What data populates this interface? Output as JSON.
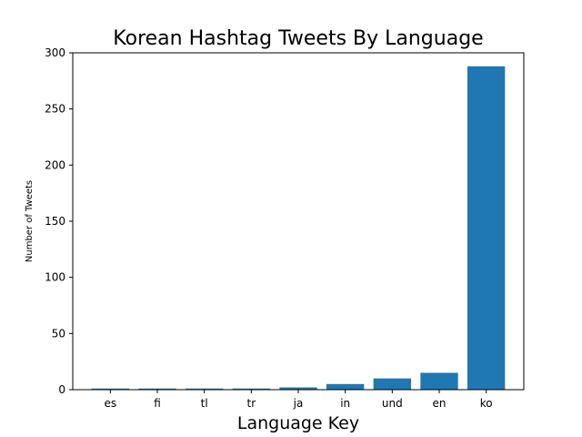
{
  "chart_data": {
    "type": "bar",
    "title": "Korean Hashtag Tweets By Language",
    "xlabel": "Language Key",
    "ylabel": "Number of Tweets",
    "categories": [
      "es",
      "fi",
      "tl",
      "tr",
      "ja",
      "in",
      "und",
      "en",
      "ko"
    ],
    "values": [
      1,
      1,
      1,
      1,
      2,
      5,
      10,
      15,
      288
    ],
    "ylim": [
      0,
      300
    ],
    "yticks": [
      0,
      50,
      100,
      150,
      200,
      250,
      300
    ],
    "grid": false,
    "legend": "none",
    "bar_color": "#1f77b4"
  }
}
